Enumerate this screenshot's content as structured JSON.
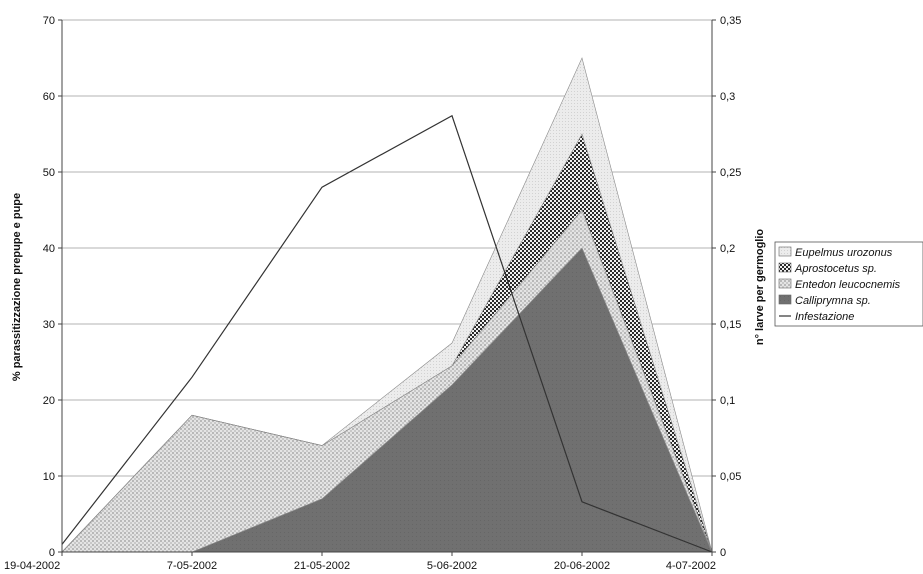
{
  "chart_data": {
    "type": "area",
    "categories": [
      "19-04-2002",
      "7-05-2002",
      "21-05-2002",
      "5-06-2002",
      "20-06-2002",
      "4-07-2002"
    ],
    "series": [
      {
        "name": "Calliprymna sp.",
        "kind": "stacked-area",
        "axis": "left",
        "values": [
          0,
          0,
          7,
          22,
          40,
          0
        ],
        "color": "#6e6e6e",
        "pattern": "solid-dark"
      },
      {
        "name": "Entedon leucocnemis",
        "kind": "stacked-area",
        "axis": "left",
        "values": [
          0,
          18,
          7,
          2.5,
          5,
          0
        ],
        "color": "#d6d6d6",
        "pattern": "light-dots"
      },
      {
        "name": "Aprostocetus sp.",
        "kind": "stacked-area",
        "axis": "left",
        "values": [
          0,
          0,
          0,
          0,
          10,
          0
        ],
        "color": "#3c3c3c",
        "pattern": "checker"
      },
      {
        "name": "Eupelmus urozonus",
        "kind": "stacked-area",
        "axis": "left",
        "values": [
          0,
          0,
          0,
          3,
          10,
          0
        ],
        "color": "#e7e7e7",
        "pattern": "fine"
      },
      {
        "name": "Infestazione",
        "kind": "line",
        "axis": "right",
        "values": [
          0.005,
          0.115,
          0.24,
          0.287,
          0.033,
          0
        ],
        "color": "#333333"
      }
    ],
    "ylabel": "% parassitizzazione prepupe e pupe",
    "y2label": "n° larve per germoglio",
    "ylim": [
      0,
      70
    ],
    "y2lim": [
      0,
      0.35
    ],
    "yticks": [
      "0",
      "10",
      "20",
      "30",
      "40",
      "50",
      "60",
      "70"
    ],
    "y2ticks": [
      "0",
      "0,05",
      "0,1",
      "0,15",
      "0,2",
      "0,25",
      "0,3",
      "0,35"
    ],
    "grid": true,
    "legend_position": "right"
  }
}
